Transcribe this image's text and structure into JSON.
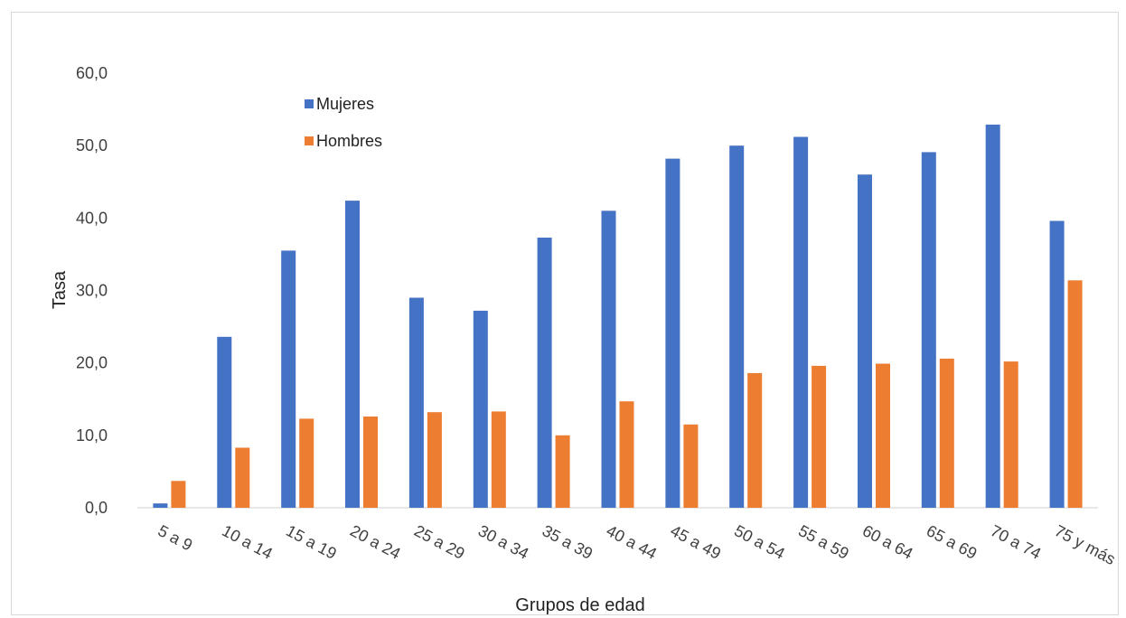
{
  "chart_data": {
    "type": "bar",
    "xlabel": "Grupos de edad",
    "ylabel": "Tasa",
    "ylim": [
      0,
      60
    ],
    "ytick_step": 10,
    "ytick_labels": [
      "0,0",
      "10,0",
      "20,0",
      "30,0",
      "40,0",
      "50,0",
      "60,0"
    ],
    "grid": false,
    "legend_position": "top-left",
    "categories": [
      "5 a 9",
      "10 a 14",
      "15 a 19",
      "20 a 24",
      "25 a 29",
      "30 a 34",
      "35 a 39",
      "40 a 44",
      "45 a 49",
      "50 a 54",
      "55 a 59",
      "60 a 64",
      "65 a 69",
      "70 a 74",
      "75 y más"
    ],
    "series": [
      {
        "name": "Mujeres",
        "color": "#4472C4",
        "values": [
          0.6,
          23.6,
          35.5,
          42.4,
          29.0,
          27.2,
          37.3,
          41.0,
          48.2,
          50.0,
          51.2,
          46.0,
          49.1,
          52.9,
          39.6
        ]
      },
      {
        "name": "Hombres",
        "color": "#ED7D31",
        "values": [
          3.7,
          8.3,
          12.3,
          12.6,
          13.2,
          13.3,
          10.0,
          14.7,
          11.5,
          18.6,
          19.6,
          19.9,
          20.6,
          20.2,
          31.4
        ]
      }
    ]
  }
}
